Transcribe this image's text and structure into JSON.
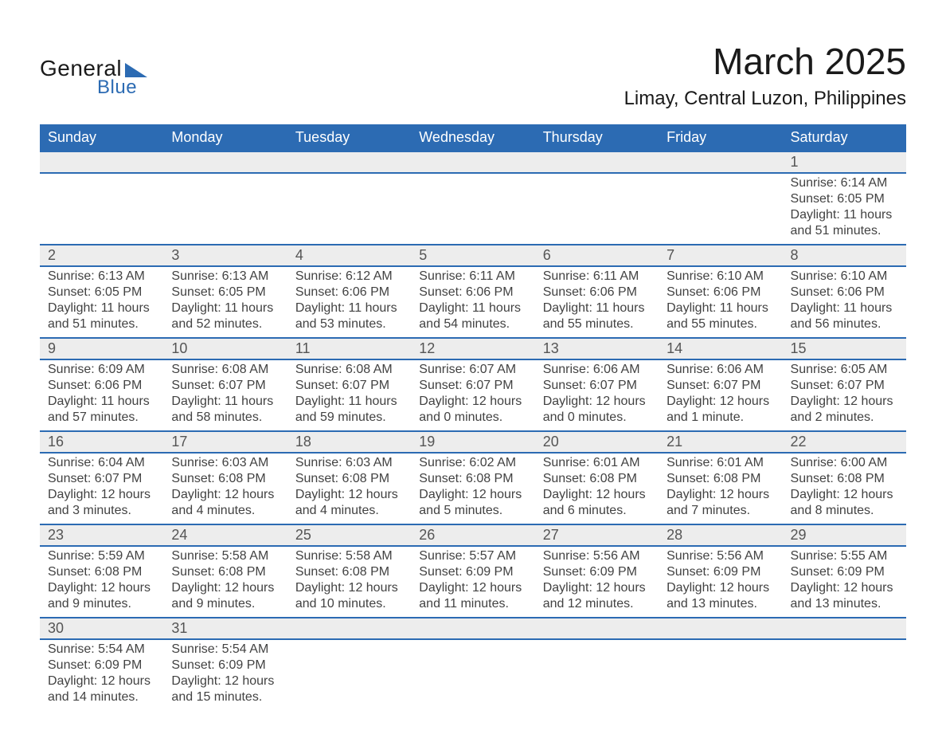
{
  "logo": {
    "text1": "General",
    "text2": "Blue"
  },
  "title": "March 2025",
  "location": "Limay, Central Luzon, Philippines",
  "calendar": {
    "type": "table",
    "header_bg": "#2c6bb3",
    "header_fg": "#ffffff",
    "daynum_bg": "#ededed",
    "row_divider_color": "#2c6bb3",
    "text_color": "#424242",
    "title_fontsize": 46,
    "location_fontsize": 24,
    "header_fontsize": 18,
    "cell_fontsize": 16,
    "columns": [
      "Sunday",
      "Monday",
      "Tuesday",
      "Wednesday",
      "Thursday",
      "Friday",
      "Saturday"
    ],
    "weeks": [
      [
        null,
        null,
        null,
        null,
        null,
        null,
        {
          "n": "1",
          "sunrise": "6:14 AM",
          "sunset": "6:05 PM",
          "daylight": "11 hours and 51 minutes."
        }
      ],
      [
        {
          "n": "2",
          "sunrise": "6:13 AM",
          "sunset": "6:05 PM",
          "daylight": "11 hours and 51 minutes."
        },
        {
          "n": "3",
          "sunrise": "6:13 AM",
          "sunset": "6:05 PM",
          "daylight": "11 hours and 52 minutes."
        },
        {
          "n": "4",
          "sunrise": "6:12 AM",
          "sunset": "6:06 PM",
          "daylight": "11 hours and 53 minutes."
        },
        {
          "n": "5",
          "sunrise": "6:11 AM",
          "sunset": "6:06 PM",
          "daylight": "11 hours and 54 minutes."
        },
        {
          "n": "6",
          "sunrise": "6:11 AM",
          "sunset": "6:06 PM",
          "daylight": "11 hours and 55 minutes."
        },
        {
          "n": "7",
          "sunrise": "6:10 AM",
          "sunset": "6:06 PM",
          "daylight": "11 hours and 55 minutes."
        },
        {
          "n": "8",
          "sunrise": "6:10 AM",
          "sunset": "6:06 PM",
          "daylight": "11 hours and 56 minutes."
        }
      ],
      [
        {
          "n": "9",
          "sunrise": "6:09 AM",
          "sunset": "6:06 PM",
          "daylight": "11 hours and 57 minutes."
        },
        {
          "n": "10",
          "sunrise": "6:08 AM",
          "sunset": "6:07 PM",
          "daylight": "11 hours and 58 minutes."
        },
        {
          "n": "11",
          "sunrise": "6:08 AM",
          "sunset": "6:07 PM",
          "daylight": "11 hours and 59 minutes."
        },
        {
          "n": "12",
          "sunrise": "6:07 AM",
          "sunset": "6:07 PM",
          "daylight": "12 hours and 0 minutes."
        },
        {
          "n": "13",
          "sunrise": "6:06 AM",
          "sunset": "6:07 PM",
          "daylight": "12 hours and 0 minutes."
        },
        {
          "n": "14",
          "sunrise": "6:06 AM",
          "sunset": "6:07 PM",
          "daylight": "12 hours and 1 minute."
        },
        {
          "n": "15",
          "sunrise": "6:05 AM",
          "sunset": "6:07 PM",
          "daylight": "12 hours and 2 minutes."
        }
      ],
      [
        {
          "n": "16",
          "sunrise": "6:04 AM",
          "sunset": "6:07 PM",
          "daylight": "12 hours and 3 minutes."
        },
        {
          "n": "17",
          "sunrise": "6:03 AM",
          "sunset": "6:08 PM",
          "daylight": "12 hours and 4 minutes."
        },
        {
          "n": "18",
          "sunrise": "6:03 AM",
          "sunset": "6:08 PM",
          "daylight": "12 hours and 4 minutes."
        },
        {
          "n": "19",
          "sunrise": "6:02 AM",
          "sunset": "6:08 PM",
          "daylight": "12 hours and 5 minutes."
        },
        {
          "n": "20",
          "sunrise": "6:01 AM",
          "sunset": "6:08 PM",
          "daylight": "12 hours and 6 minutes."
        },
        {
          "n": "21",
          "sunrise": "6:01 AM",
          "sunset": "6:08 PM",
          "daylight": "12 hours and 7 minutes."
        },
        {
          "n": "22",
          "sunrise": "6:00 AM",
          "sunset": "6:08 PM",
          "daylight": "12 hours and 8 minutes."
        }
      ],
      [
        {
          "n": "23",
          "sunrise": "5:59 AM",
          "sunset": "6:08 PM",
          "daylight": "12 hours and 9 minutes."
        },
        {
          "n": "24",
          "sunrise": "5:58 AM",
          "sunset": "6:08 PM",
          "daylight": "12 hours and 9 minutes."
        },
        {
          "n": "25",
          "sunrise": "5:58 AM",
          "sunset": "6:08 PM",
          "daylight": "12 hours and 10 minutes."
        },
        {
          "n": "26",
          "sunrise": "5:57 AM",
          "sunset": "6:09 PM",
          "daylight": "12 hours and 11 minutes."
        },
        {
          "n": "27",
          "sunrise": "5:56 AM",
          "sunset": "6:09 PM",
          "daylight": "12 hours and 12 minutes."
        },
        {
          "n": "28",
          "sunrise": "5:56 AM",
          "sunset": "6:09 PM",
          "daylight": "12 hours and 13 minutes."
        },
        {
          "n": "29",
          "sunrise": "5:55 AM",
          "sunset": "6:09 PM",
          "daylight": "12 hours and 13 minutes."
        }
      ],
      [
        {
          "n": "30",
          "sunrise": "5:54 AM",
          "sunset": "6:09 PM",
          "daylight": "12 hours and 14 minutes."
        },
        {
          "n": "31",
          "sunrise": "5:54 AM",
          "sunset": "6:09 PM",
          "daylight": "12 hours and 15 minutes."
        },
        null,
        null,
        null,
        null,
        null
      ]
    ],
    "labels": {
      "sunrise": "Sunrise: ",
      "sunset": "Sunset: ",
      "daylight": "Daylight: "
    }
  }
}
